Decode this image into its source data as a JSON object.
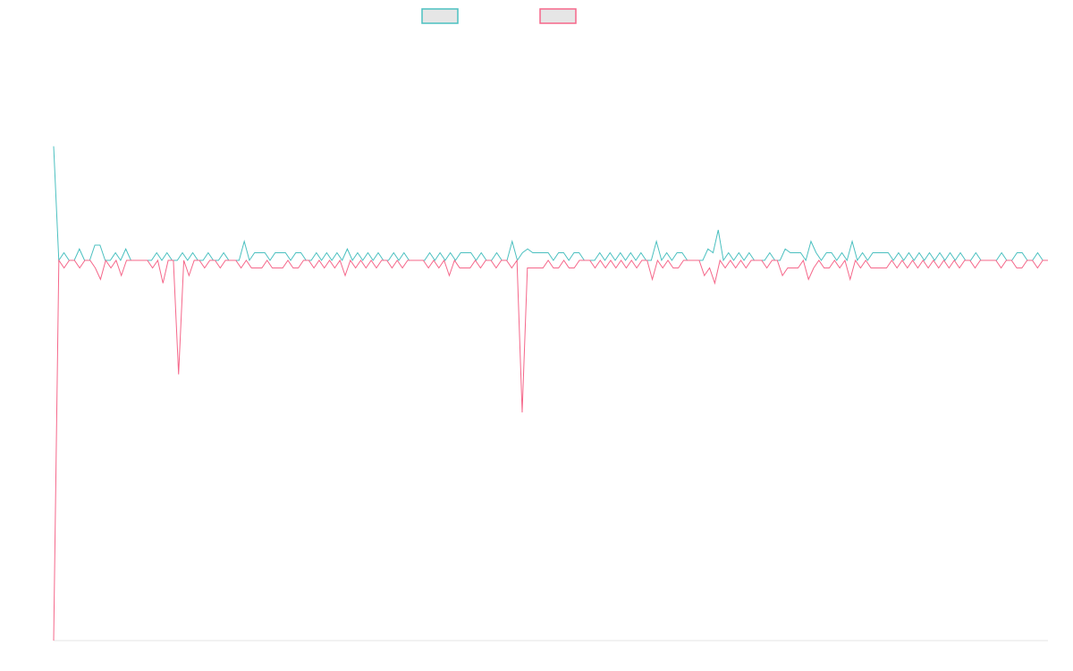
{
  "chart_data": {
    "type": "line",
    "title": "",
    "xlabel": "",
    "ylabel": "",
    "grid": false,
    "legend_position": "top-center",
    "ylim": [
      -1,
      0.6
    ],
    "point_count": 194,
    "series": [
      {
        "color": "#4bc0c0",
        "values": [
          0.3,
          0.0,
          0.02,
          0.0,
          0.0,
          0.03,
          0.0,
          0.0,
          0.04,
          0.04,
          0.0,
          0.0,
          0.02,
          0.0,
          0.03,
          0.0,
          0.0,
          0.0,
          0.0,
          0.0,
          0.02,
          0.0,
          0.02,
          0.0,
          0.0,
          0.02,
          0.0,
          0.02,
          0.0,
          0.0,
          0.02,
          0.0,
          0.0,
          0.02,
          0.0,
          0.0,
          0.0,
          0.05,
          0.0,
          0.02,
          0.02,
          0.02,
          0.0,
          0.02,
          0.02,
          0.02,
          0.0,
          0.02,
          0.02,
          0.0,
          0.0,
          0.02,
          0.0,
          0.02,
          0.0,
          0.02,
          0.0,
          0.03,
          0.0,
          0.02,
          0.0,
          0.02,
          0.0,
          0.02,
          0.0,
          0.0,
          0.02,
          0.0,
          0.02,
          0.0,
          0.0,
          0.0,
          0.0,
          0.02,
          0.0,
          0.02,
          0.0,
          0.02,
          0.0,
          0.02,
          0.02,
          0.02,
          0.0,
          0.02,
          0.0,
          0.0,
          0.02,
          0.0,
          0.0,
          0.05,
          0.0,
          0.02,
          0.03,
          0.02,
          0.02,
          0.02,
          0.02,
          0.0,
          0.02,
          0.02,
          0.0,
          0.02,
          0.02,
          0.0,
          0.0,
          0.0,
          0.02,
          0.0,
          0.02,
          0.0,
          0.02,
          0.0,
          0.02,
          0.0,
          0.02,
          0.0,
          0.0,
          0.05,
          0.0,
          0.02,
          0.0,
          0.02,
          0.02,
          0.0,
          0.0,
          0.0,
          0.0,
          0.03,
          0.02,
          0.08,
          0.0,
          0.02,
          0.0,
          0.02,
          0.0,
          0.02,
          0.0,
          0.0,
          0.0,
          0.02,
          0.0,
          0.0,
          0.03,
          0.02,
          0.02,
          0.02,
          0.0,
          0.05,
          0.02,
          0.0,
          0.02,
          0.02,
          0.0,
          0.02,
          0.0,
          0.05,
          0.0,
          0.02,
          0.0,
          0.02,
          0.02,
          0.02,
          0.02,
          0.0,
          0.02,
          0.0,
          0.02,
          0.0,
          0.02,
          0.0,
          0.02,
          0.0,
          0.02,
          0.0,
          0.02,
          0.0,
          0.02,
          0.0,
          0.0,
          0.02,
          0.0,
          0.0,
          0.0,
          0.0,
          0.02,
          0.0,
          0.0,
          0.02,
          0.02,
          0.0,
          0.0,
          0.02,
          0.0,
          0.0
        ]
      },
      {
        "color": "#f5678a",
        "values": [
          -1.0,
          0.0,
          -0.02,
          0.0,
          0.0,
          -0.02,
          0.0,
          0.0,
          -0.02,
          -0.05,
          0.0,
          -0.02,
          0.0,
          -0.04,
          0.0,
          0.0,
          0.0,
          0.0,
          0.0,
          -0.02,
          0.0,
          -0.06,
          0.0,
          0.0,
          -0.3,
          0.0,
          -0.04,
          0.0,
          0.0,
          -0.02,
          0.0,
          0.0,
          -0.02,
          0.0,
          0.0,
          0.0,
          -0.02,
          0.0,
          -0.02,
          -0.02,
          -0.02,
          0.0,
          -0.02,
          -0.02,
          -0.02,
          0.0,
          -0.02,
          -0.02,
          0.0,
          0.0,
          -0.02,
          0.0,
          -0.02,
          0.0,
          -0.02,
          0.0,
          -0.04,
          0.0,
          -0.02,
          0.0,
          -0.02,
          0.0,
          -0.02,
          0.0,
          0.0,
          -0.02,
          0.0,
          -0.02,
          0.0,
          0.0,
          0.0,
          0.0,
          -0.02,
          0.0,
          -0.02,
          0.0,
          -0.04,
          0.0,
          -0.02,
          -0.02,
          -0.02,
          0.0,
          -0.02,
          0.0,
          0.0,
          -0.02,
          0.0,
          0.0,
          -0.02,
          0.0,
          -0.4,
          -0.02,
          -0.02,
          -0.02,
          -0.02,
          0.0,
          -0.02,
          -0.02,
          0.0,
          -0.02,
          -0.02,
          0.0,
          0.0,
          0.0,
          -0.02,
          0.0,
          -0.02,
          0.0,
          -0.02,
          0.0,
          -0.02,
          0.0,
          -0.02,
          0.0,
          0.0,
          -0.05,
          0.0,
          -0.02,
          0.0,
          -0.02,
          -0.02,
          0.0,
          0.0,
          0.0,
          0.0,
          -0.04,
          -0.02,
          -0.06,
          0.0,
          -0.02,
          0.0,
          -0.02,
          0.0,
          -0.02,
          0.0,
          0.0,
          0.0,
          -0.02,
          0.0,
          0.0,
          -0.04,
          -0.02,
          -0.02,
          -0.02,
          0.0,
          -0.05,
          -0.02,
          0.0,
          -0.02,
          -0.02,
          0.0,
          -0.02,
          0.0,
          -0.05,
          0.0,
          -0.02,
          0.0,
          -0.02,
          -0.02,
          -0.02,
          -0.02,
          0.0,
          -0.02,
          0.0,
          -0.02,
          0.0,
          -0.02,
          0.0,
          -0.02,
          0.0,
          -0.02,
          0.0,
          -0.02,
          0.0,
          -0.02,
          0.0,
          0.0,
          -0.02,
          0.0,
          0.0,
          0.0,
          0.0,
          -0.02,
          0.0,
          0.0,
          -0.02,
          -0.02,
          0.0,
          0.0,
          -0.02,
          0.0,
          0.0
        ]
      }
    ]
  }
}
